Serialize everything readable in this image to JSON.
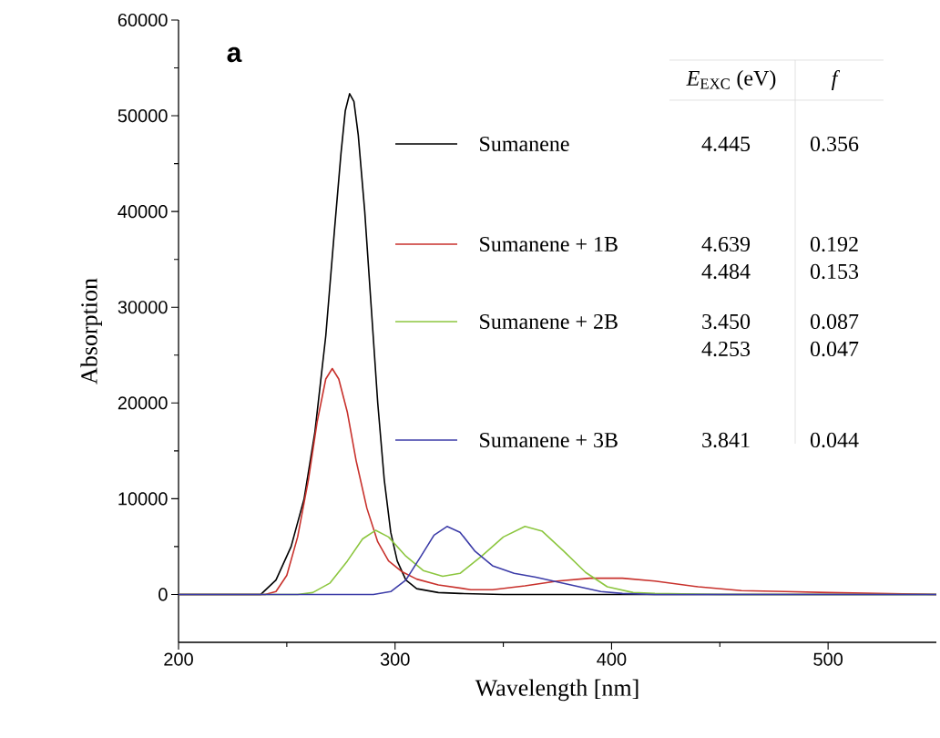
{
  "chart_data": {
    "type": "line",
    "xlabel": "Wavelength [nm]",
    "ylabel": "Absorption",
    "xlim": [
      200,
      550
    ],
    "xticks": [
      200,
      300,
      400,
      500
    ],
    "ylim": [
      -5000,
      60000
    ],
    "yticks": [
      0,
      10000,
      20000,
      30000,
      40000,
      50000,
      60000
    ],
    "legend": "top",
    "annotations": [
      "a",
      "*E*$_{EXC}$ (eV)",
      "f",
      "4.445",
      "0.356",
      "4.639",
      "0.192",
      "4.484",
      "0.153",
      "3.450",
      "0.087",
      "4.253",
      "0.047",
      "3.841",
      "0.044"
    ],
    "series": [
      {
        "name": "Sumanene",
        "color": "#000000",
        "x": [
          200,
          230,
          238,
          245,
          252,
          258,
          263,
          268,
          272,
          275,
          277,
          279,
          281,
          283,
          286,
          289,
          292,
          295,
          298,
          301,
          305,
          310,
          320,
          330,
          350,
          550
        ],
        "values": [
          0,
          0,
          0,
          1500,
          5000,
          10000,
          17000,
          27000,
          38000,
          46000,
          50500,
          52300,
          51500,
          48000,
          40000,
          30000,
          20000,
          12000,
          6500,
          3500,
          1500,
          600,
          200,
          100,
          0,
          0
        ]
      },
      {
        "name": "Sumanene + 1B",
        "color": "#c8312c",
        "x": [
          200,
          240,
          245,
          250,
          255,
          260,
          264,
          268,
          271,
          274,
          278,
          282,
          287,
          292,
          297,
          303,
          310,
          320,
          335,
          345,
          360,
          375,
          390,
          405,
          420,
          440,
          460,
          480,
          500,
          550
        ],
        "values": [
          0,
          0,
          300,
          2000,
          6000,
          12000,
          18000,
          22500,
          23600,
          22500,
          19000,
          14000,
          9000,
          5500,
          3500,
          2400,
          1600,
          1000,
          500,
          500,
          900,
          1400,
          1700,
          1700,
          1400,
          800,
          400,
          300,
          200,
          0
        ]
      },
      {
        "name": "Sumanene + 2B",
        "color": "#8cc63f",
        "x": [
          200,
          255,
          262,
          270,
          278,
          285,
          291,
          297,
          305,
          313,
          322,
          330,
          340,
          350,
          360,
          368,
          378,
          388,
          398,
          410,
          420,
          450,
          550
        ],
        "values": [
          0,
          0,
          200,
          1200,
          3500,
          5800,
          6700,
          6000,
          4000,
          2500,
          1900,
          2200,
          4000,
          6000,
          7100,
          6600,
          4500,
          2300,
          800,
          200,
          100,
          0,
          0
        ]
      },
      {
        "name": "Sumanene + 3B",
        "color": "#3c3ca8",
        "x": [
          200,
          290,
          298,
          305,
          312,
          318,
          324,
          330,
          337,
          345,
          355,
          365,
          375,
          385,
          395,
          405,
          420,
          550
        ],
        "values": [
          0,
          0,
          300,
          1500,
          4000,
          6200,
          7100,
          6500,
          4500,
          3000,
          2200,
          1800,
          1300,
          800,
          300,
          100,
          0,
          0
        ]
      }
    ]
  }
}
